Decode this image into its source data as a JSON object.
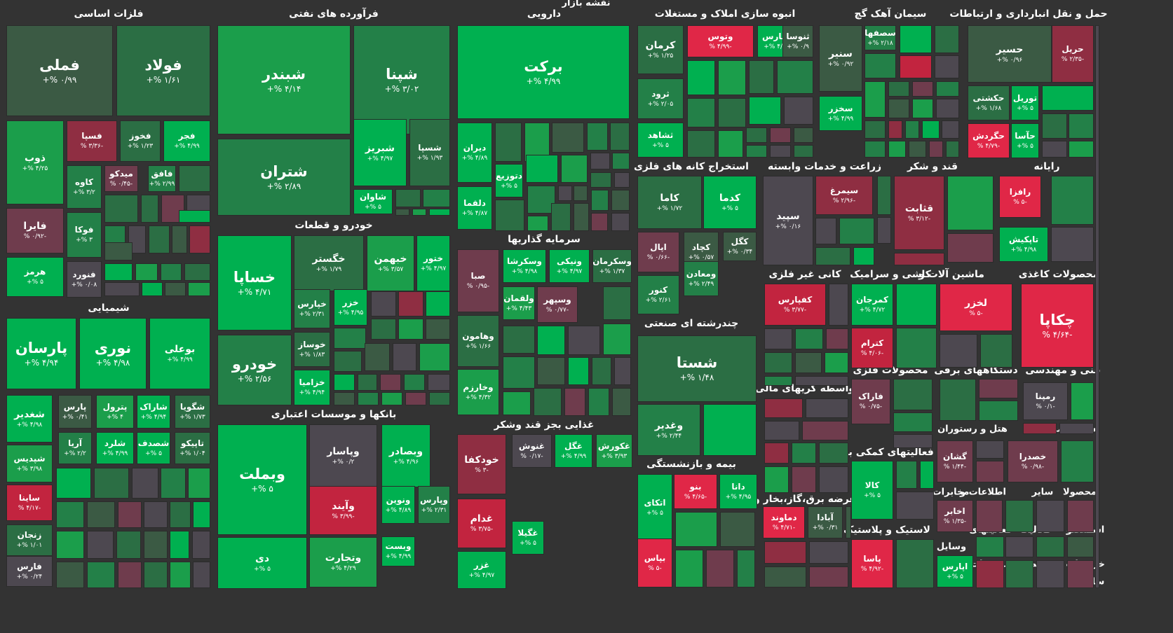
{
  "title": "نقشه بازار",
  "colors": {
    "g5": "#00b050",
    "g4": "#1b9e4b",
    "g3": "#238048",
    "g2": "#2b6e44",
    "g1": "#3b5a44",
    "n": "#4d4850",
    "r1": "#6f3c4d",
    "r2": "#8f2e42",
    "r3": "#c2243f",
    "r4": "#e02747"
  },
  "chart_data": {
    "type": "treemap",
    "sectors": [
      {
        "name": "فلزات اساسی"
      },
      {
        "name": "فرآورده های نفتی"
      },
      {
        "name": "دارویی"
      },
      {
        "name": "انبوه سازی املاک و مستغلات"
      },
      {
        "name": "سیمان آهک گچ"
      },
      {
        "name": "حمل و نقل انبارداری و ارتباطات"
      },
      {
        "name": "شیمیایی"
      },
      {
        "name": "خودرو و قطعات"
      },
      {
        "name": "سرمایه گذاریها"
      },
      {
        "name": "استخراج کانه های فلزی"
      },
      {
        "name": "زراعت و خدمات وابسته"
      },
      {
        "name": "قند و شکر"
      },
      {
        "name": "رایانه"
      },
      {
        "name": "چندرشته ای صنعتی"
      },
      {
        "name": "کانی غیر فلزی"
      },
      {
        "name": "کاشی و سرامیک"
      },
      {
        "name": "ماشین آلات و"
      },
      {
        "name": "محصولات کاغذی"
      },
      {
        "name": "واسطه گریهای مالی"
      },
      {
        "name": "محصولات فلزی"
      },
      {
        "name": "دستگاههای برقی"
      },
      {
        "name": "فنی و مهندسی"
      },
      {
        "name": "بانکها و موسسات اعتباری"
      },
      {
        "name": "غذایی بجز قند وشکر"
      },
      {
        "name": "هتل و رستوران"
      },
      {
        "name": "بیمانکاری"
      },
      {
        "name": "استخراج"
      },
      {
        "name": "فعالیتهای کمکی به"
      },
      {
        "name": "بیمه و بازنشستگی"
      },
      {
        "name": "عرضه برق،گاز،بخار و"
      },
      {
        "name": "اطلاعات و"
      },
      {
        "name": "مخابرات"
      },
      {
        "name": "سایر"
      },
      {
        "name": "محصولا"
      },
      {
        "name": "لاستیک و پلاستیک"
      },
      {
        "name": "فعالیتهای"
      },
      {
        "name": "فعالیت"
      },
      {
        "name": "محصو"
      },
      {
        "name": "استه"
      },
      {
        "name": "وسایل"
      },
      {
        "name": "منسوجات"
      },
      {
        "name": "محصو"
      },
      {
        "name": "جاب"
      },
      {
        "name": "خرده"
      },
      {
        "name": "سایر"
      }
    ],
    "tiles": [
      {
        "symbol": "فملی",
        "change": "۰/۹۹ %+",
        "value": 0.99
      },
      {
        "symbol": "فولاد",
        "change": "۱/۶۱ %+",
        "value": 1.61
      },
      {
        "symbol": "ذوب",
        "change": "۴/۲۵ %+",
        "value": 4.25
      },
      {
        "symbol": "فسپا",
        "change": "-۳/۳۶ %",
        "value": -3.36
      },
      {
        "symbol": "فخوز",
        "change": "۱/۲۳ %+",
        "value": 1.23
      },
      {
        "symbol": "فجر",
        "change": "۴/۹۹ %+",
        "value": 4.99
      },
      {
        "symbol": "کاوه",
        "change": "۳/۲ %+",
        "value": 3.2
      },
      {
        "symbol": "میدکو",
        "change": "-۰/۴۵ %",
        "value": -0.45
      },
      {
        "symbol": "فافق",
        "change": "۲/۹۹ %+",
        "value": 2.99
      },
      {
        "symbol": "فایرا",
        "change": "-۰/۹۲ %",
        "value": -0.92
      },
      {
        "symbol": "فوکا",
        "change": "۳ %+",
        "value": 3
      },
      {
        "symbol": "هرمز",
        "change": "۵ %+",
        "value": 5
      },
      {
        "symbol": "فنورد",
        "change": "۰/۰۸ %+",
        "value": 0.08
      },
      {
        "symbol": "شبندر",
        "change": "۴/۱۴ %+",
        "value": 4.14
      },
      {
        "symbol": "شپنا",
        "change": "۳/۰۲ %+",
        "value": 3.02
      },
      {
        "symbol": "شتران",
        "change": "۲/۸۹ %+",
        "value": 2.89
      },
      {
        "symbol": "شبریز",
        "change": "۴/۹۷ %+",
        "value": 4.97
      },
      {
        "symbol": "شسپا",
        "change": "۱/۹۳ %+",
        "value": 1.93
      },
      {
        "symbol": "شاوان",
        "change": "۵ %+",
        "value": 5
      },
      {
        "symbol": "برکت",
        "change": "۴/۹۹ %+",
        "value": 4.99
      },
      {
        "symbol": "دیران",
        "change": "۴/۸۹ %+",
        "value": 4.89
      },
      {
        "symbol": "دتوزیع",
        "change": "۵ %+",
        "value": 5
      },
      {
        "symbol": "دلقما",
        "change": "۴/۸۷ %+",
        "value": 4.87
      },
      {
        "symbol": "کرمان",
        "change": "۱/۲۵ %+",
        "value": 1.25
      },
      {
        "symbol": "وتوس",
        "change": "-۴/۹۹ %",
        "value": -4.99
      },
      {
        "symbol": "ثفارس",
        "change": "۴/۹۸ %+",
        "value": 4.98
      },
      {
        "symbol": "ثنوسا",
        "change": "۰/۹ %+",
        "value": 0.9
      },
      {
        "symbol": "ثرود",
        "change": "۲/۰۵ %+",
        "value": 2.05
      },
      {
        "symbol": "ثشاهد",
        "change": "۵ %+",
        "value": 5
      },
      {
        "symbol": "سنیر",
        "change": "۰/۹۲ %+",
        "value": 0.92
      },
      {
        "symbol": "سصفها",
        "change": "۲/۱۸ %+",
        "value": 2.18
      },
      {
        "symbol": "سخزر",
        "change": "۴/۹۹ %+",
        "value": 4.99
      },
      {
        "symbol": "حسیر",
        "change": "۰/۹۶ %+",
        "value": 0.96
      },
      {
        "symbol": "حریل",
        "change": "-۲/۳۵ %",
        "value": -2.35
      },
      {
        "symbol": "حکشتی",
        "change": "۱/۶۸ %+",
        "value": 1.68
      },
      {
        "symbol": "توریل",
        "change": "۵ %+",
        "value": 5
      },
      {
        "symbol": "حگردش",
        "change": "-۴/۷۹ %",
        "value": -4.79
      },
      {
        "symbol": "حآسا",
        "change": "۵ %+",
        "value": 5
      },
      {
        "symbol": "پارسان",
        "change": "۴/۹۴ %+",
        "value": 4.94
      },
      {
        "symbol": "نوری",
        "change": "۴/۹۸ %+",
        "value": 4.98
      },
      {
        "symbol": "بوعلی",
        "change": "۴/۹۹ %+",
        "value": 4.99
      },
      {
        "symbol": "شغدیر",
        "change": "۴/۹۸ %+",
        "value": 4.98
      },
      {
        "symbol": "پارس",
        "change": "۰/۴۱ %+",
        "value": 0.41
      },
      {
        "symbol": "پترول",
        "change": "۴ %+",
        "value": 4
      },
      {
        "symbol": "شاراک",
        "change": "۴/۹۴ %+",
        "value": 4.94
      },
      {
        "symbol": "شگویا",
        "change": "۱/۷۳ %+",
        "value": 1.73
      },
      {
        "symbol": "شپدیس",
        "change": "۳/۹۸ %+",
        "value": 3.98
      },
      {
        "symbol": "آریا",
        "change": "۲/۲ %+",
        "value": 2.2
      },
      {
        "symbol": "شلرد",
        "change": "۴/۹۹ %+",
        "value": 4.99
      },
      {
        "symbol": "شصدف",
        "change": "۵ %+",
        "value": 5
      },
      {
        "symbol": "تاپیکو",
        "change": "۱/۰۴ %+",
        "value": 1.04
      },
      {
        "symbol": "ساینا",
        "change": "-۴/۱۷ %",
        "value": -4.17
      },
      {
        "symbol": "زنجان",
        "change": "۱/۰۱ %+",
        "value": 1.01
      },
      {
        "symbol": "فارس",
        "change": "۰/۲۴ %+",
        "value": 0.24
      },
      {
        "symbol": "خساپا",
        "change": "۴/۷۱ %+",
        "value": 4.71
      },
      {
        "symbol": "خگستر",
        "change": "۱/۷۹ %+",
        "value": 1.79
      },
      {
        "symbol": "خبهمن",
        "change": "۳/۵۷ %+",
        "value": 3.57
      },
      {
        "symbol": "ختور",
        "change": "۴/۹۷ %+",
        "value": 4.97
      },
      {
        "symbol": "خپارس",
        "change": "۲/۳۱ %+",
        "value": 2.31
      },
      {
        "symbol": "خزر",
        "change": "۴/۹۵ %+",
        "value": 4.95
      },
      {
        "symbol": "خودرو",
        "change": "۲/۵۶ %+",
        "value": 2.56
      },
      {
        "symbol": "خوساز",
        "change": "۱/۸۳ %+",
        "value": 1.83
      },
      {
        "symbol": "خزامیا",
        "change": "۴/۹۴ %+",
        "value": 4.94
      },
      {
        "symbol": "وسکرشا",
        "change": "۴/۹۸ %+",
        "value": 4.98
      },
      {
        "symbol": "ونیکی",
        "change": "۴/۹۷ %+",
        "value": 4.97
      },
      {
        "symbol": "وسکرمان",
        "change": "۱/۳۷ %+",
        "value": 1.37
      },
      {
        "symbol": "صبا",
        "change": "-۰/۹۵ %",
        "value": -0.95
      },
      {
        "symbol": "ولقمان",
        "change": "۴/۴۳ %+",
        "value": 4.43
      },
      {
        "symbol": "وسپهر",
        "change": "-۰/۷۷ %",
        "value": -0.77
      },
      {
        "symbol": "وهامون",
        "change": "۱/۶۶ %+",
        "value": 1.66
      },
      {
        "symbol": "وخارزم",
        "change": "۴/۳۲ %+",
        "value": 4.32
      },
      {
        "symbol": "کاما",
        "change": "۱/۷۲ %+",
        "value": 1.72
      },
      {
        "symbol": "کدما",
        "change": "۵ %+",
        "value": 5
      },
      {
        "symbol": "اپال",
        "change": "-۰/۶۶ %",
        "value": -0.66
      },
      {
        "symbol": "کچاد",
        "change": "۰/۵۷ %+",
        "value": 0.57
      },
      {
        "symbol": "کگل",
        "change": "۰/۳۴ %+",
        "value": 0.34
      },
      {
        "symbol": "ومعادن",
        "change": "۲/۴۹ %+",
        "value": 2.49
      },
      {
        "symbol": "کنور",
        "change": "۲/۶۱ %+",
        "value": 2.61
      },
      {
        "symbol": "سپید",
        "change": "۰/۱۶ %+",
        "value": 0.16
      },
      {
        "symbol": "سیمرغ",
        "change": "-۲/۹۶ %",
        "value": -2.96
      },
      {
        "symbol": "قثابت",
        "change": "-۳/۱۲ %",
        "value": -3.12
      },
      {
        "symbol": "رافزا",
        "change": "-۵ %",
        "value": -5
      },
      {
        "symbol": "تاپکیش",
        "change": "۴/۹۸ %+",
        "value": 4.98
      },
      {
        "symbol": "شستا",
        "change": "۱/۴۸ %+",
        "value": 1.48
      },
      {
        "symbol": "کفپارس",
        "change": "-۳/۷۷ %",
        "value": -3.77
      },
      {
        "symbol": "کمرجان",
        "change": "۴/۷۲ %+",
        "value": 4.72
      },
      {
        "symbol": "کترام",
        "change": "-۴/۰۶ %",
        "value": -4.06
      },
      {
        "symbol": "لخزر",
        "change": "-۵ %",
        "value": -5
      },
      {
        "symbol": "چکاپا",
        "change": "-۴/۶۴ %",
        "value": -4.64
      },
      {
        "symbol": "وغدیر",
        "change": "۲/۴۴ %+",
        "value": 2.44
      },
      {
        "symbol": "فاراک",
        "change": "-۰/۷۵ %",
        "value": -0.75
      },
      {
        "symbol": "رمپنا",
        "change": "-۰/۱ %",
        "value": -0.1
      },
      {
        "symbol": "وبملت",
        "change": "۵ %+",
        "value": 5
      },
      {
        "symbol": "وپاسار",
        "change": "۰/۲ %+",
        "value": 0.2
      },
      {
        "symbol": "وبصادر",
        "change": "۴/۹۶ %+",
        "value": 4.96
      },
      {
        "symbol": "وآیند",
        "change": "-۳/۹۹ %",
        "value": -3.99
      },
      {
        "symbol": "ونوین",
        "change": "۴/۸۹ %+",
        "value": 4.89
      },
      {
        "symbol": "وپارس",
        "change": "۲/۳۱ %+",
        "value": 2.31
      },
      {
        "symbol": "دی",
        "change": "۵ %+",
        "value": 5
      },
      {
        "symbol": "وتجارت",
        "change": "۴/۲۹ %+",
        "value": 4.29
      },
      {
        "symbol": "وبست",
        "change": "۴/۹۹ %+",
        "value": 4.99
      },
      {
        "symbol": "خودکفا",
        "change": "-۳ %",
        "value": -3
      },
      {
        "symbol": "غنوش",
        "change": "-۰/۱۷ %",
        "value": -0.17
      },
      {
        "symbol": "غگل",
        "change": "۴/۹۹ %+",
        "value": 4.99
      },
      {
        "symbol": "غکورش",
        "change": "۳/۹۳ %+",
        "value": 3.93
      },
      {
        "symbol": "غدام",
        "change": "-۳/۷۵ %",
        "value": -3.75
      },
      {
        "symbol": "غگیلا",
        "change": "۵ %+",
        "value": 5
      },
      {
        "symbol": "غزر",
        "change": "۴/۹۷ %+",
        "value": 4.97
      },
      {
        "symbol": "گشان",
        "change": "-۱/۴۴ %",
        "value": -1.44
      },
      {
        "symbol": "خصدرا",
        "change": "-۰/۹۸ %",
        "value": -0.98
      },
      {
        "symbol": "کالا",
        "change": "۵ %+",
        "value": 5
      },
      {
        "symbol": "اتکای",
        "change": "۵ %+",
        "value": 5
      },
      {
        "symbol": "بنو",
        "change": "-۴/۶۵ %",
        "value": -4.65
      },
      {
        "symbol": "دانا",
        "change": "۴/۹۵ %+",
        "value": 4.95
      },
      {
        "symbol": "دماوند",
        "change": "-۴/۷۱ %",
        "value": -4.71
      },
      {
        "symbol": "آبادا",
        "change": "۰/۳۱ %+",
        "value": 0.31
      },
      {
        "symbol": "اخابر",
        "change": "-۱/۳۵ %",
        "value": -1.35
      },
      {
        "symbol": "بپاس",
        "change": "-۵ %",
        "value": -5
      },
      {
        "symbol": "پاسا",
        "change": "-۴/۹۲ %",
        "value": -4.92
      },
      {
        "symbol": "اپارس",
        "change": "۵ %+",
        "value": 5
      }
    ]
  }
}
